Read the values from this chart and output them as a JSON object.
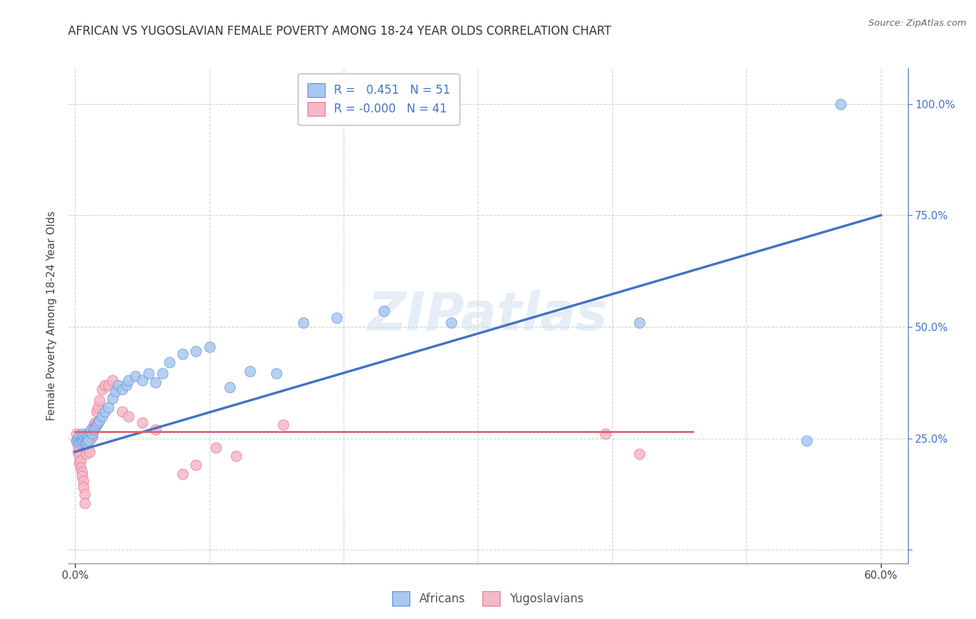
{
  "title": "AFRICAN VS YUGOSLAVIAN FEMALE POVERTY AMONG 18-24 YEAR OLDS CORRELATION CHART",
  "source": "Source: ZipAtlas.com",
  "ylabel": "Female Poverty Among 18-24 Year Olds",
  "xlabel_ticks": [
    "0.0%",
    "",
    "",
    "",
    "",
    "",
    "60.0%"
  ],
  "xlabel_vals": [
    0.0,
    0.1,
    0.2,
    0.3,
    0.4,
    0.5,
    0.6
  ],
  "ylabel_ticks_right": [
    "",
    "25.0%",
    "50.0%",
    "75.0%",
    "100.0%"
  ],
  "ylabel_vals": [
    0.0,
    0.25,
    0.5,
    0.75,
    1.0
  ],
  "xlim": [
    -0.005,
    0.62
  ],
  "ylim": [
    -0.03,
    1.08
  ],
  "africans_R": 0.451,
  "africans_N": 51,
  "yugoslavians_R": -0.0,
  "yugoslavians_N": 41,
  "african_color": "#A8C8F0",
  "yugoslav_color": "#F5B8C8",
  "african_edge_color": "#5B8DD9",
  "yugoslav_edge_color": "#E87088",
  "african_line_color": "#4472C4",
  "yugoslav_line_color": "#E06070",
  "watermark": "ZIPatlas",
  "background_color": "#FFFFFF",
  "grid_color": "#CCCCCC",
  "africans_x": [
    0.001,
    0.002,
    0.003,
    0.003,
    0.004,
    0.005,
    0.005,
    0.006,
    0.006,
    0.007,
    0.008,
    0.008,
    0.009,
    0.01,
    0.01,
    0.011,
    0.012,
    0.013,
    0.014,
    0.015,
    0.016,
    0.017,
    0.018,
    0.02,
    0.022,
    0.025,
    0.028,
    0.03,
    0.032,
    0.035,
    0.038,
    0.04,
    0.045,
    0.05,
    0.055,
    0.06,
    0.065,
    0.07,
    0.08,
    0.09,
    0.1,
    0.115,
    0.13,
    0.15,
    0.17,
    0.195,
    0.23,
    0.28,
    0.42,
    0.545,
    0.57
  ],
  "africans_y": [
    0.245,
    0.25,
    0.255,
    0.24,
    0.245,
    0.25,
    0.26,
    0.245,
    0.255,
    0.25,
    0.24,
    0.255,
    0.25,
    0.255,
    0.245,
    0.265,
    0.27,
    0.26,
    0.27,
    0.275,
    0.28,
    0.285,
    0.29,
    0.3,
    0.31,
    0.32,
    0.34,
    0.355,
    0.37,
    0.36,
    0.37,
    0.38,
    0.39,
    0.38,
    0.395,
    0.375,
    0.395,
    0.42,
    0.44,
    0.445,
    0.455,
    0.365,
    0.4,
    0.395,
    0.51,
    0.52,
    0.535,
    0.51,
    0.51,
    0.245,
    1.0
  ],
  "yugoslavians_x": [
    0.001,
    0.001,
    0.002,
    0.002,
    0.003,
    0.003,
    0.004,
    0.004,
    0.005,
    0.005,
    0.006,
    0.006,
    0.007,
    0.007,
    0.008,
    0.008,
    0.009,
    0.01,
    0.011,
    0.012,
    0.013,
    0.014,
    0.015,
    0.016,
    0.017,
    0.018,
    0.02,
    0.022,
    0.025,
    0.028,
    0.035,
    0.04,
    0.05,
    0.06,
    0.08,
    0.09,
    0.105,
    0.12,
    0.155,
    0.42,
    0.395
  ],
  "yugoslavians_y": [
    0.26,
    0.245,
    0.235,
    0.22,
    0.21,
    0.195,
    0.2,
    0.185,
    0.175,
    0.165,
    0.155,
    0.14,
    0.125,
    0.105,
    0.235,
    0.215,
    0.245,
    0.23,
    0.22,
    0.25,
    0.255,
    0.28,
    0.285,
    0.31,
    0.32,
    0.335,
    0.36,
    0.37,
    0.37,
    0.38,
    0.31,
    0.3,
    0.285,
    0.27,
    0.17,
    0.19,
    0.23,
    0.21,
    0.28,
    0.215,
    0.26
  ],
  "african_trendline_x": [
    0.0,
    0.6
  ],
  "african_trendline_y": [
    0.22,
    0.75
  ],
  "yugoslav_trendline_x": [
    0.0,
    0.46
  ],
  "yugoslav_trendline_y": [
    0.265,
    0.265
  ]
}
